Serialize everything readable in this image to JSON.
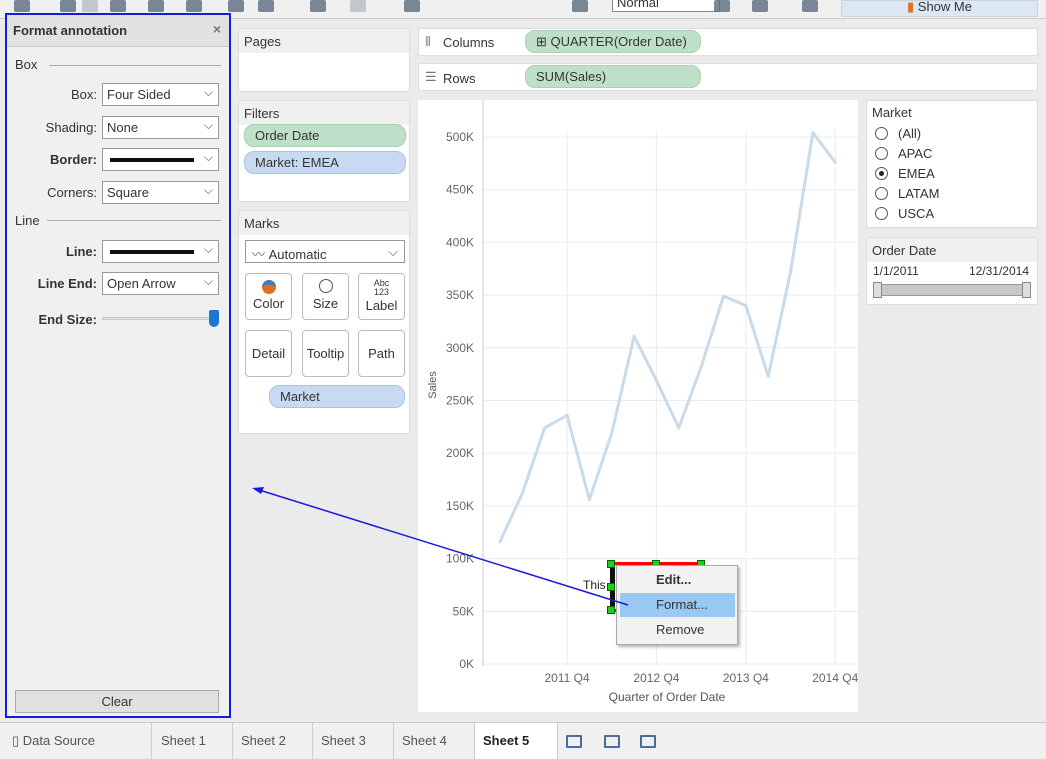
{
  "toolbar": {
    "view_size": "Normal",
    "show_me": "Show Me"
  },
  "format_panel": {
    "title": "Format annotation",
    "close": "×",
    "box_section": "Box",
    "line_section": "Line",
    "box_label": "Box:",
    "box_value": "Four Sided",
    "shading_label": "Shading:",
    "shading_value": "None",
    "border_label": "Border:",
    "corners_label": "Corners:",
    "corners_value": "Square",
    "line_label": "Line:",
    "line_end_label": "Line End:",
    "line_end_value": "Open Arrow",
    "end_size_label": "End Size:",
    "end_size_level": 1.0,
    "clear": "Clear"
  },
  "shelves": {
    "pages": "Pages",
    "columns_label": "Columns",
    "columns_pill": "QUARTER(Order Date)",
    "rows_label": "Rows",
    "rows_pill": "SUM(Sales)"
  },
  "filters": {
    "title": "Filters",
    "items": [
      "Order Date",
      "Market: EMEA"
    ]
  },
  "marks": {
    "title": "Marks",
    "type": "Automatic",
    "buttons": {
      "color": "Color",
      "size": "Size",
      "label": "Label",
      "label_icon": "Abc\n123",
      "detail": "Detail",
      "tooltip": "Tooltip",
      "path": "Path"
    },
    "pill": "Market"
  },
  "market_filter": {
    "title": "Market",
    "options": [
      "(All)",
      "APAC",
      "EMEA",
      "LATAM",
      "USCA"
    ],
    "selected": "EMEA"
  },
  "date_filter": {
    "title": "Order Date",
    "start": "1/1/2011",
    "end": "12/31/2014"
  },
  "annotation": {
    "text": "This"
  },
  "context_menu": {
    "items": [
      "Edit...",
      "Format...",
      "Remove"
    ],
    "highlighted": "Format..."
  },
  "tabs": {
    "data_source": "Data Source",
    "sheets": [
      "Sheet 1",
      "Sheet 2",
      "Sheet 3",
      "Sheet 4",
      "Sheet 5"
    ],
    "active": "Sheet 5"
  },
  "colors": {
    "line": "#c9dbeb",
    "accent": "#1a78d4",
    "highlight": "#99c9f2",
    "annotation_border": "#ff0000",
    "arrow": "#1a1adb"
  },
  "chart_data": {
    "type": "line",
    "xlabel": "Quarter of Order Date",
    "ylabel": "Sales",
    "x": [
      "2011 Q1",
      "2011 Q2",
      "2011 Q3",
      "2011 Q4",
      "2012 Q1",
      "2012 Q2",
      "2012 Q3",
      "2012 Q4",
      "2013 Q1",
      "2013 Q2",
      "2013 Q3",
      "2013 Q4",
      "2014 Q1",
      "2014 Q2",
      "2014 Q3",
      "2014 Q4"
    ],
    "x_tick_labels": [
      "2011 Q4",
      "2012 Q4",
      "2013 Q4",
      "2014 Q4"
    ],
    "y_tick_labels": [
      "0K",
      "50K",
      "100K",
      "150K",
      "200K",
      "250K",
      "300K",
      "350K",
      "400K",
      "450K",
      "500K"
    ],
    "ylim": [
      0,
      500000
    ],
    "grid": true,
    "series": [
      {
        "values": [
          116000,
          162000,
          224000,
          236000,
          156000,
          219000,
          311000,
          269000,
          224000,
          282000,
          349000,
          340000,
          273000,
          372000,
          504000,
          476000
        ]
      }
    ]
  }
}
